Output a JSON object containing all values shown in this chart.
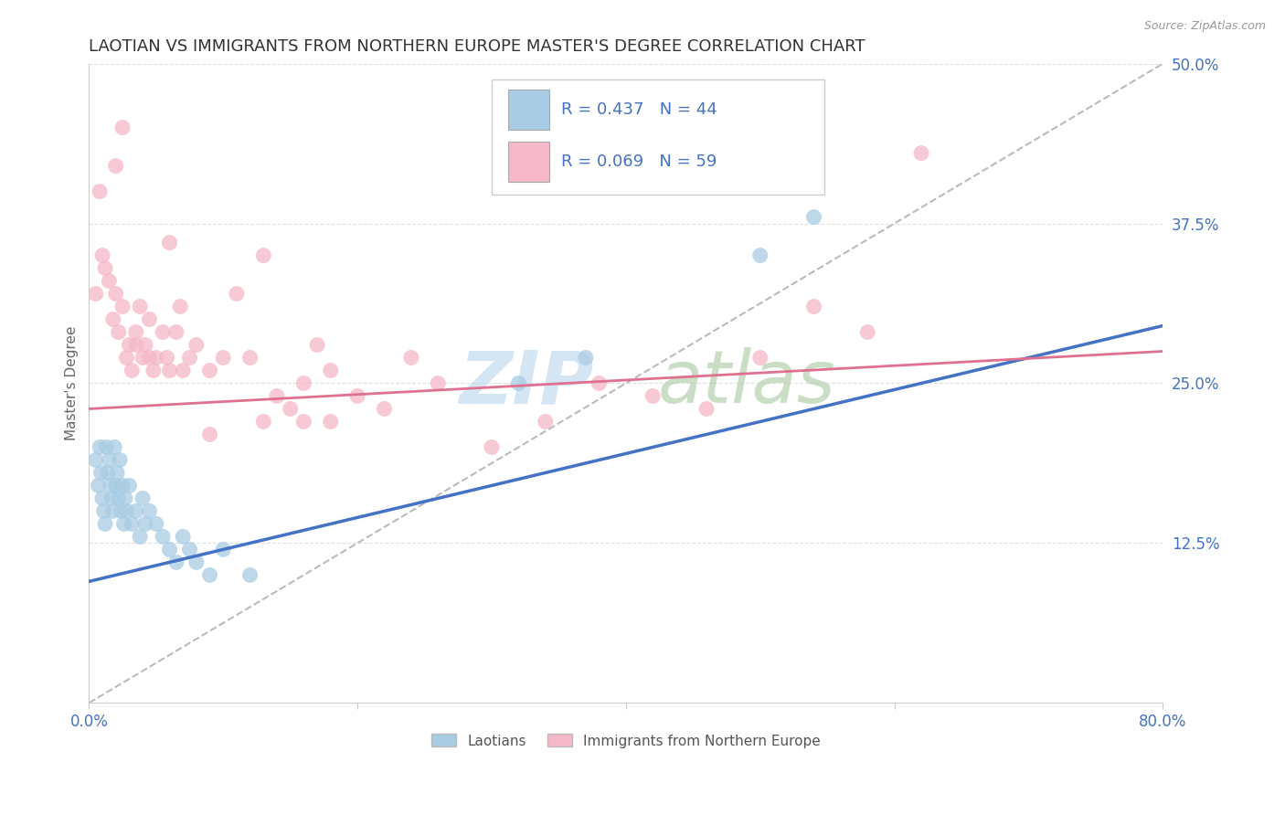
{
  "title": "LAOTIAN VS IMMIGRANTS FROM NORTHERN EUROPE MASTER'S DEGREE CORRELATION CHART",
  "source_text": "Source: ZipAtlas.com",
  "ylabel": "Master's Degree",
  "xlim": [
    0.0,
    0.8
  ],
  "ylim": [
    0.0,
    0.5
  ],
  "yticks": [
    0.125,
    0.25,
    0.375,
    0.5
  ],
  "ytick_labels": [
    "12.5%",
    "25.0%",
    "37.5%",
    "50.0%"
  ],
  "series1_label": "Laotians",
  "series1_R": 0.437,
  "series1_N": 44,
  "series1_color": "#a8cce4",
  "series1_line_color": "#4472c4",
  "series2_label": "Immigrants from Northern Europe",
  "series2_R": 0.069,
  "series2_N": 59,
  "series2_color": "#f4b8c8",
  "series2_line_color": "#e07090",
  "watermark_color_zip": "#b8d4ec",
  "watermark_color_atlas": "#a8c8a0",
  "background_color": "#ffffff",
  "grid_color": "#e0e0e0",
  "title_fontsize": 13,
  "tick_label_color": "#4472c4",
  "ref_line_color": "#bbbbbb",
  "blue_line_start_y": 0.095,
  "blue_line_end_y": 0.295,
  "pink_line_start_y": 0.23,
  "pink_line_end_y": 0.275,
  "series1_x": [
    0.005,
    0.007,
    0.008,
    0.009,
    0.01,
    0.011,
    0.012,
    0.013,
    0.014,
    0.015,
    0.016,
    0.017,
    0.018,
    0.019,
    0.02,
    0.021,
    0.022,
    0.023,
    0.024,
    0.025,
    0.026,
    0.027,
    0.028,
    0.03,
    0.032,
    0.035,
    0.038,
    0.04,
    0.042,
    0.045,
    0.05,
    0.055,
    0.06,
    0.065,
    0.07,
    0.075,
    0.08,
    0.09,
    0.1,
    0.12,
    0.32,
    0.37,
    0.5,
    0.54
  ],
  "series1_y": [
    0.19,
    0.17,
    0.2,
    0.18,
    0.16,
    0.15,
    0.14,
    0.2,
    0.18,
    0.19,
    0.17,
    0.16,
    0.15,
    0.2,
    0.17,
    0.18,
    0.16,
    0.19,
    0.15,
    0.17,
    0.14,
    0.16,
    0.15,
    0.17,
    0.14,
    0.15,
    0.13,
    0.16,
    0.14,
    0.15,
    0.14,
    0.13,
    0.12,
    0.11,
    0.13,
    0.12,
    0.11,
    0.1,
    0.12,
    0.1,
    0.25,
    0.27,
    0.35,
    0.38
  ],
  "series2_x": [
    0.005,
    0.008,
    0.01,
    0.012,
    0.015,
    0.018,
    0.02,
    0.022,
    0.025,
    0.028,
    0.03,
    0.032,
    0.035,
    0.038,
    0.04,
    0.042,
    0.045,
    0.048,
    0.05,
    0.055,
    0.058,
    0.06,
    0.065,
    0.068,
    0.07,
    0.075,
    0.08,
    0.09,
    0.1,
    0.11,
    0.12,
    0.13,
    0.14,
    0.15,
    0.16,
    0.17,
    0.18,
    0.2,
    0.22,
    0.24,
    0.26,
    0.3,
    0.34,
    0.38,
    0.42,
    0.46,
    0.5,
    0.54,
    0.58,
    0.62,
    0.18,
    0.025,
    0.02,
    0.06,
    0.13,
    0.035,
    0.045,
    0.16,
    0.09
  ],
  "series2_y": [
    0.32,
    0.4,
    0.35,
    0.34,
    0.33,
    0.3,
    0.32,
    0.29,
    0.31,
    0.27,
    0.28,
    0.26,
    0.29,
    0.31,
    0.27,
    0.28,
    0.3,
    0.26,
    0.27,
    0.29,
    0.27,
    0.26,
    0.29,
    0.31,
    0.26,
    0.27,
    0.28,
    0.26,
    0.27,
    0.32,
    0.27,
    0.22,
    0.24,
    0.23,
    0.22,
    0.28,
    0.26,
    0.24,
    0.23,
    0.27,
    0.25,
    0.2,
    0.22,
    0.25,
    0.24,
    0.23,
    0.27,
    0.31,
    0.29,
    0.43,
    0.22,
    0.45,
    0.42,
    0.36,
    0.35,
    0.28,
    0.27,
    0.25,
    0.21
  ]
}
